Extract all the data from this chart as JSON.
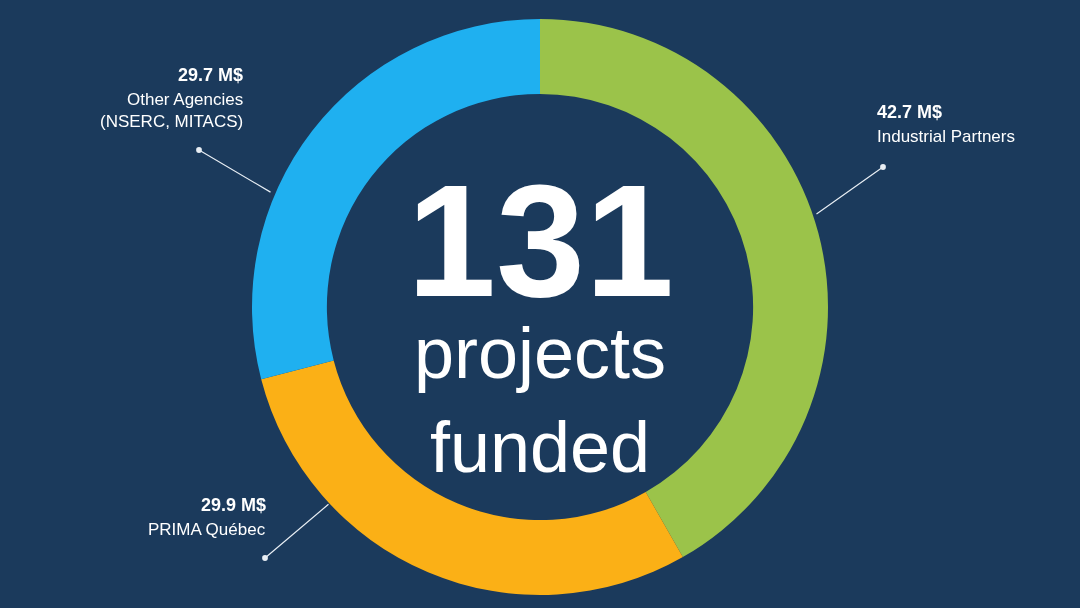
{
  "chart_data": {
    "type": "donut",
    "categories": [
      "Industrial Partners",
      "PRIMA Québec",
      "Other Agencies\n(NSERC, MITACS)"
    ],
    "values": [
      42.7,
      29.9,
      29.7
    ],
    "colors": [
      "#9bc34a",
      "#fbb016",
      "#1fb0f0"
    ],
    "value_labels": [
      "42.7 M$",
      "29.9 M$",
      "29.7 M$"
    ],
    "annotations": [
      "131",
      "projects\nfunded"
    ],
    "legend": false
  }
}
